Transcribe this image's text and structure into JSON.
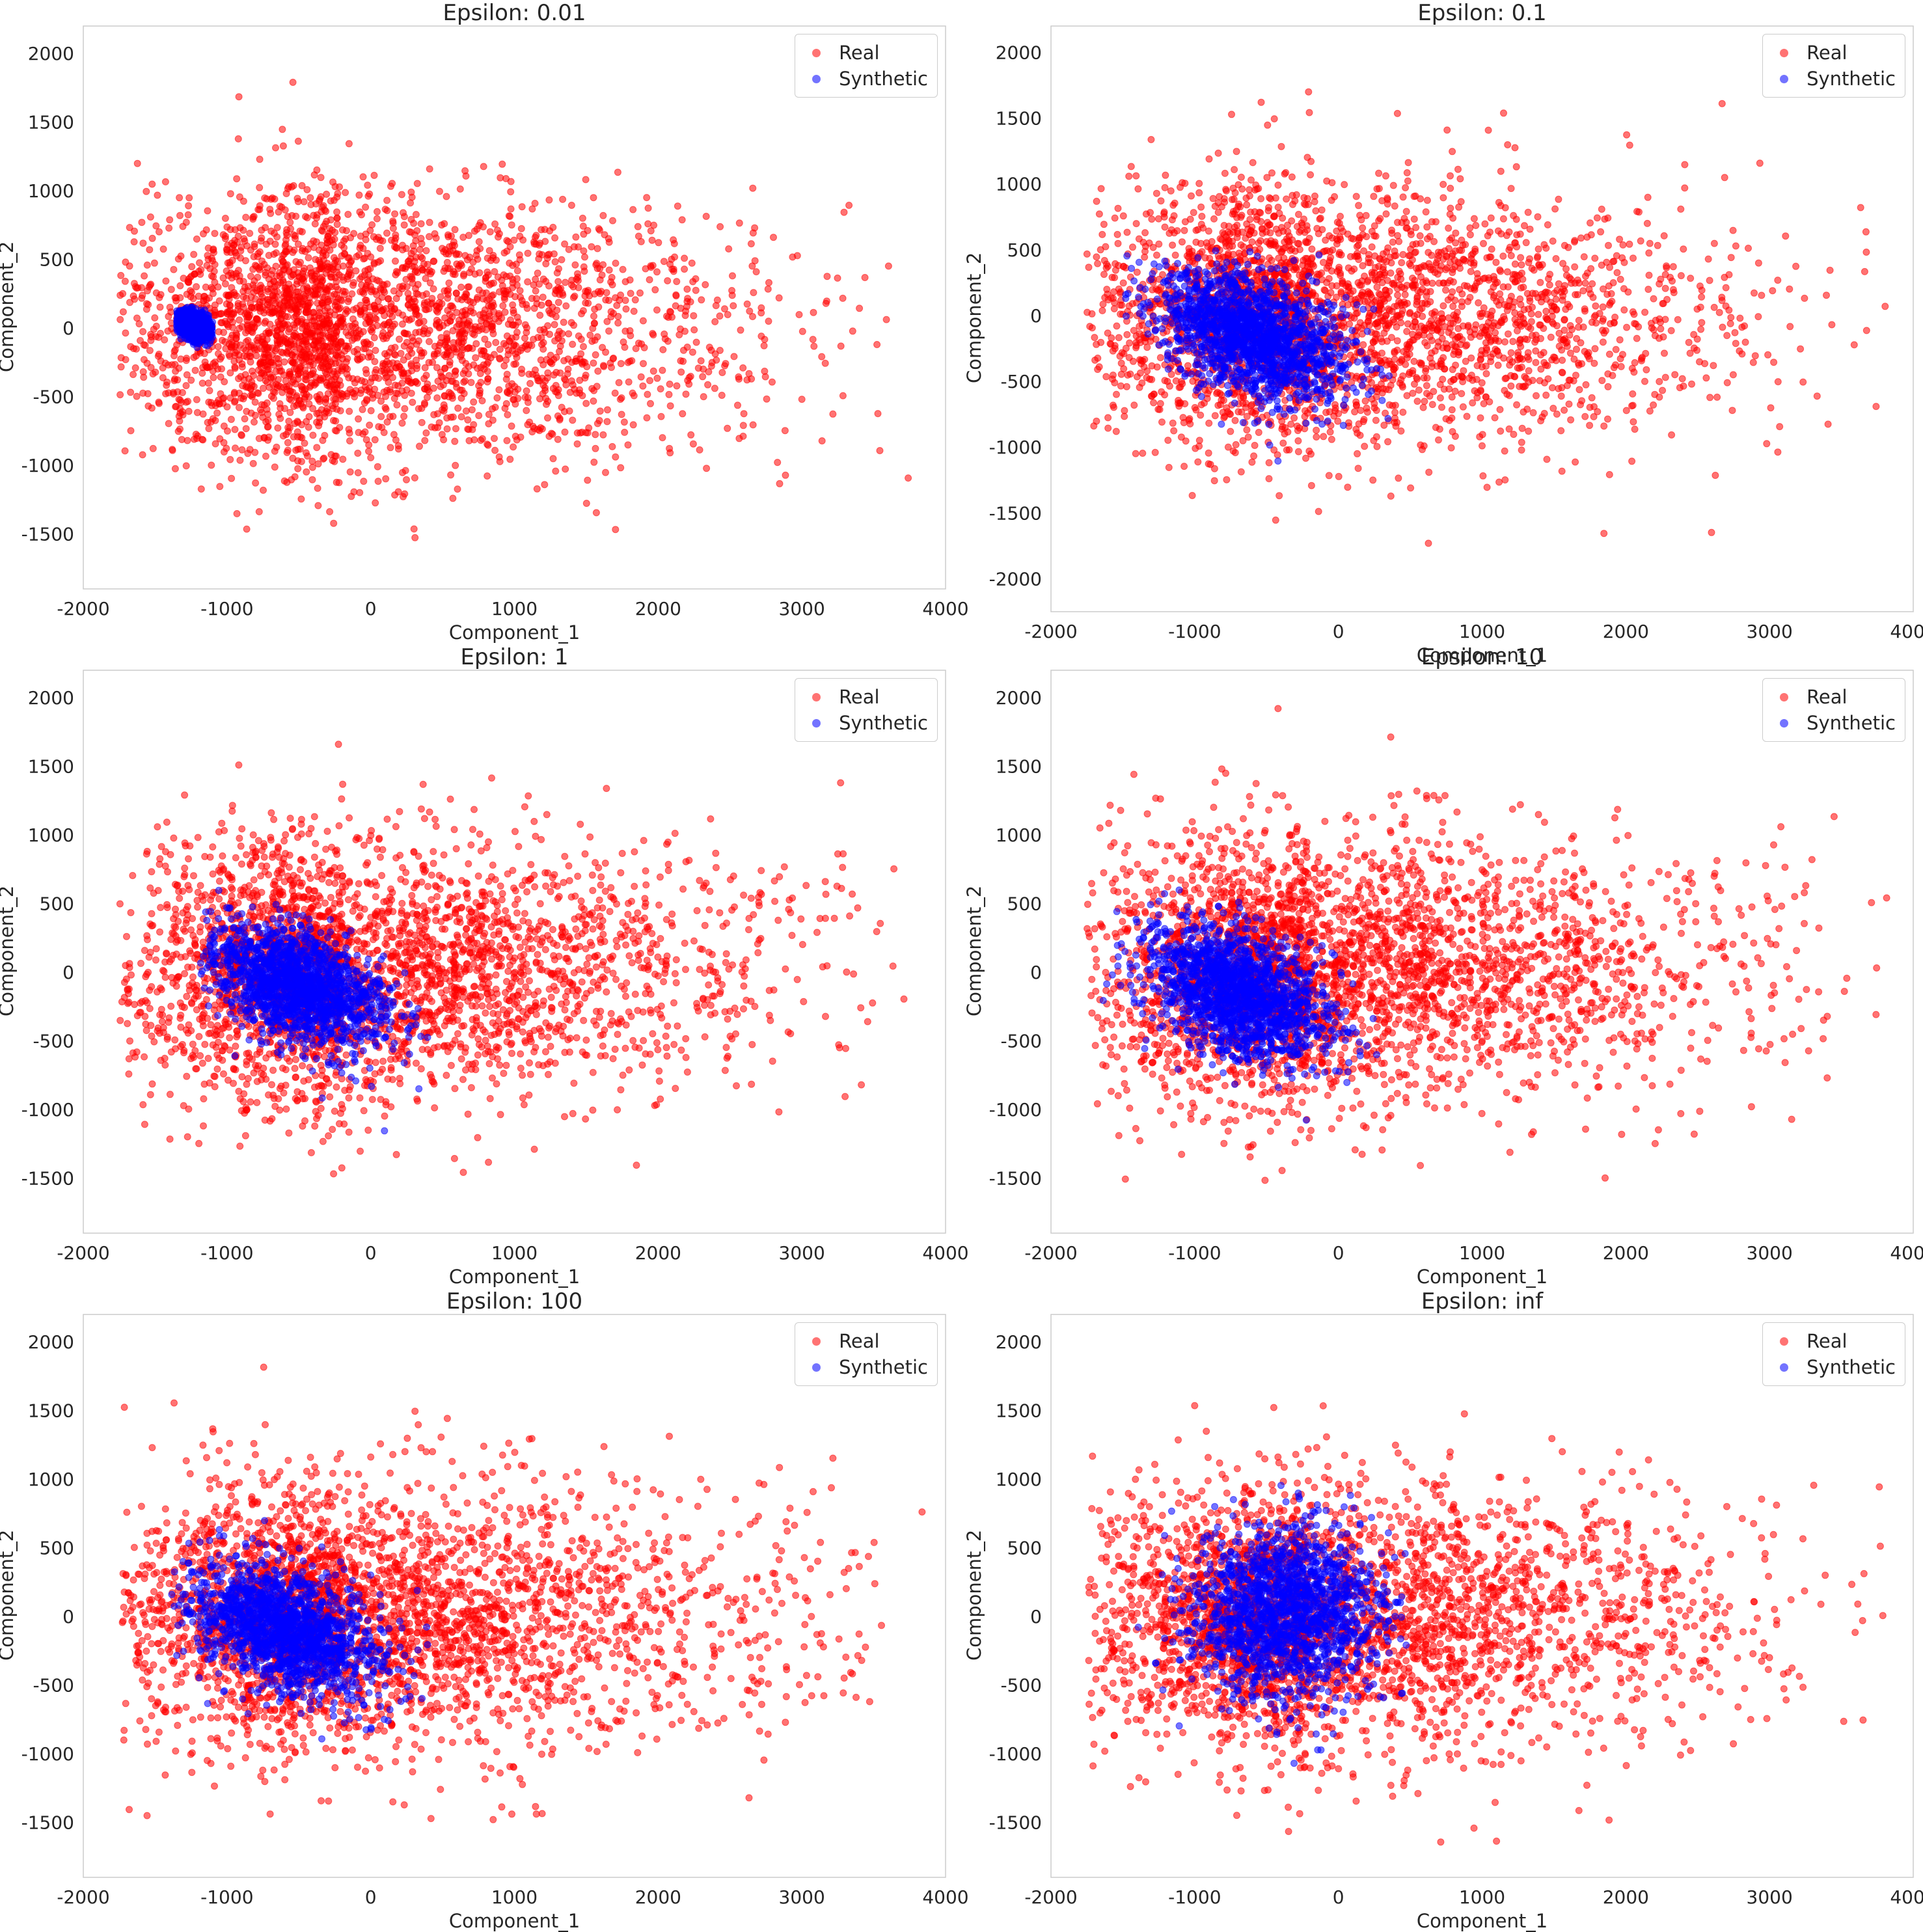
{
  "chart_data": [
    {
      "type": "scatter",
      "title": "Epsilon: 0.01",
      "xlabel": "Component_1",
      "ylabel": "Component_2",
      "xlim": [
        -2000,
        4000
      ],
      "ylim": [
        -1900,
        2200
      ],
      "xticks": [
        "-2000",
        "-1000",
        "0",
        "1000",
        "2000",
        "3000",
        "4000"
      ],
      "yticks": [
        "-1500",
        "-1000",
        "-500",
        "0",
        "500",
        "1000",
        "1500",
        "2000"
      ],
      "grid": false,
      "legend_position": "upper right",
      "series": [
        {
          "name": "Real",
          "color": "#ff0000",
          "center": [
            -200,
            0
          ],
          "spread": [
            750,
            480
          ],
          "range_x": [
            -1750,
            3850
          ],
          "range_y": [
            -1750,
            2000
          ],
          "alpha": 0.55
        },
        {
          "name": "Synthetic",
          "color": "#0000ff",
          "center": [
            -1230,
            20
          ],
          "spread": [
            60,
            45
          ],
          "tilt": -0.4,
          "range_x": [
            -1350,
            -1100
          ],
          "range_y": [
            -150,
            170
          ],
          "alpha": 0.55
        }
      ]
    },
    {
      "type": "scatter",
      "title": "Epsilon: 0.1",
      "xlabel": "Component_1",
      "ylabel": "Component_2",
      "xlim": [
        -2000,
        4000
      ],
      "ylim": [
        -2250,
        2200
      ],
      "xticks": [
        "-2000",
        "-1000",
        "0",
        "1000",
        "2000",
        "3000",
        "4000"
      ],
      "yticks": [
        "-2000",
        "-1500",
        "-1000",
        "-500",
        "0",
        "500",
        "1000",
        "1500",
        "2000"
      ],
      "grid": false,
      "legend_position": "upper right",
      "series": [
        {
          "name": "Real",
          "color": "#ff0000",
          "center": [
            -200,
            0
          ],
          "spread": [
            750,
            480
          ],
          "range_x": [
            -1750,
            3850
          ],
          "range_y": [
            -1750,
            2000
          ],
          "alpha": 0.55
        },
        {
          "name": "Synthetic",
          "color": "#0000ff",
          "center": [
            -600,
            -150
          ],
          "spread": [
            330,
            230
          ],
          "tilt": -0.55,
          "range_x": [
            -1500,
            1900
          ],
          "range_y": [
            -2050,
            500
          ],
          "alpha": 0.55
        }
      ]
    },
    {
      "type": "scatter",
      "title": "Epsilon: 1",
      "xlabel": "Component_1",
      "ylabel": "Component_2",
      "xlim": [
        -2000,
        4000
      ],
      "ylim": [
        -1900,
        2200
      ],
      "xticks": [
        "-2000",
        "-1000",
        "0",
        "1000",
        "2000",
        "3000",
        "4000"
      ],
      "yticks": [
        "-1500",
        "-1000",
        "-500",
        "0",
        "500",
        "1000",
        "1500",
        "2000"
      ],
      "grid": false,
      "legend_position": "upper right",
      "series": [
        {
          "name": "Real",
          "color": "#ff0000",
          "center": [
            -200,
            0
          ],
          "spread": [
            750,
            480
          ],
          "range_x": [
            -1750,
            3850
          ],
          "range_y": [
            -1750,
            2000
          ],
          "alpha": 0.55
        },
        {
          "name": "Synthetic",
          "color": "#0000ff",
          "center": [
            -500,
            -100
          ],
          "spread": [
            300,
            200
          ],
          "tilt": -0.55,
          "range_x": [
            -1200,
            500
          ],
          "range_y": [
            -1400,
            700
          ],
          "alpha": 0.55
        }
      ]
    },
    {
      "type": "scatter",
      "title": "Epsilon: 10",
      "xlabel": "Component_1",
      "ylabel": "Component_2",
      "xlim": [
        -2000,
        4000
      ],
      "ylim": [
        -1900,
        2200
      ],
      "xticks": [
        "-2000",
        "-1000",
        "0",
        "1000",
        "2000",
        "3000",
        "4000"
      ],
      "yticks": [
        "-1500",
        "-1000",
        "-500",
        "0",
        "500",
        "1000",
        "1500",
        "2000"
      ],
      "grid": false,
      "legend_position": "upper right",
      "series": [
        {
          "name": "Real",
          "color": "#ff0000",
          "center": [
            -200,
            0
          ],
          "spread": [
            750,
            480
          ],
          "range_x": [
            -1750,
            3850
          ],
          "range_y": [
            -1750,
            2000
          ],
          "alpha": 0.55
        },
        {
          "name": "Synthetic",
          "color": "#0000ff",
          "center": [
            -700,
            -150
          ],
          "spread": [
            320,
            230
          ],
          "tilt": -0.5,
          "range_x": [
            -1750,
            600
          ],
          "range_y": [
            -1750,
            600
          ],
          "alpha": 0.55
        }
      ]
    },
    {
      "type": "scatter",
      "title": "Epsilon: 100",
      "xlabel": "Component_1",
      "ylabel": "Component_2",
      "xlim": [
        -2000,
        4000
      ],
      "ylim": [
        -1900,
        2200
      ],
      "xticks": [
        "-2000",
        "-1000",
        "0",
        "1000",
        "2000",
        "3000",
        "4000"
      ],
      "yticks": [
        "-1500",
        "-1000",
        "-500",
        "0",
        "500",
        "1000",
        "1500",
        "2000"
      ],
      "grid": false,
      "legend_position": "upper right",
      "series": [
        {
          "name": "Real",
          "color": "#ff0000",
          "center": [
            -200,
            0
          ],
          "spread": [
            750,
            480
          ],
          "range_x": [
            -1750,
            3850
          ],
          "range_y": [
            -1750,
            2000
          ],
          "alpha": 0.55
        },
        {
          "name": "Synthetic",
          "color": "#0000ff",
          "center": [
            -600,
            -100
          ],
          "spread": [
            320,
            220
          ],
          "tilt": -0.5,
          "range_x": [
            -1400,
            500
          ],
          "range_y": [
            -1100,
            850
          ],
          "alpha": 0.55
        }
      ]
    },
    {
      "type": "scatter",
      "title": "Epsilon: inf",
      "xlabel": "Component_1",
      "ylabel": "Component_2",
      "xlim": [
        -2000,
        4000
      ],
      "ylim": [
        -1900,
        2200
      ],
      "xticks": [
        "-2000",
        "-1000",
        "0",
        "1000",
        "2000",
        "3000",
        "4000"
      ],
      "yticks": [
        "-1500",
        "-1000",
        "-500",
        "0",
        "500",
        "1000",
        "1500",
        "2000"
      ],
      "grid": false,
      "legend_position": "upper right",
      "series": [
        {
          "name": "Real",
          "color": "#ff0000",
          "center": [
            -200,
            0
          ],
          "spread": [
            750,
            480
          ],
          "range_x": [
            -1750,
            3850
          ],
          "range_y": [
            -1750,
            2000
          ],
          "alpha": 0.55
        },
        {
          "name": "Synthetic",
          "color": "#0000ff",
          "center": [
            -350,
            50
          ],
          "spread": [
            330,
            300
          ],
          "tilt": 0.0,
          "range_x": [
            -1500,
            500
          ],
          "range_y": [
            -1100,
            1700
          ],
          "alpha": 0.55
        }
      ]
    }
  ]
}
